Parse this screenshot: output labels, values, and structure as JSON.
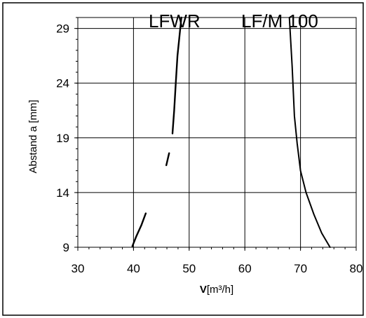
{
  "chart_data": {
    "type": "line",
    "title": "",
    "xlabel": {
      "symbol": "V",
      "unit": "[m³/h]"
    },
    "ylabel": "Abstand a [mm]",
    "xlim": [
      30,
      80
    ],
    "ylim": [
      9,
      30
    ],
    "x_ticks": [
      "30",
      "40",
      "50",
      "60",
      "70",
      "80"
    ],
    "y_ticks": [
      "9",
      "14",
      "19",
      "24",
      "29"
    ],
    "grid": true,
    "series": [
      {
        "name": "LFWR",
        "color": "#000000",
        "segments": [
          [
            [
              39.8,
              9.1
            ],
            [
              40.5,
              10.0
            ],
            [
              41.4,
              11.0
            ],
            [
              42.2,
              12.1
            ]
          ],
          [
            [
              45.9,
              16.5
            ],
            [
              46.4,
              17.6
            ]
          ],
          [
            [
              47.0,
              19.4
            ],
            [
              47.3,
              21.5
            ],
            [
              47.6,
              24.0
            ],
            [
              47.9,
              26.5
            ],
            [
              48.3,
              28.5
            ],
            [
              48.6,
              30.0
            ]
          ]
        ]
      },
      {
        "name": "LF/M 100",
        "color": "#000000",
        "segments": [
          [
            [
              68.0,
              30.0
            ],
            [
              68.5,
              25.5
            ],
            [
              68.9,
              21.0
            ],
            [
              69.4,
              18.5
            ],
            [
              70.0,
              16.0
            ],
            [
              71.0,
              14.0
            ],
            [
              72.4,
              12.0
            ],
            [
              73.8,
              10.3
            ],
            [
              75.3,
              9.0
            ]
          ]
        ]
      }
    ]
  }
}
